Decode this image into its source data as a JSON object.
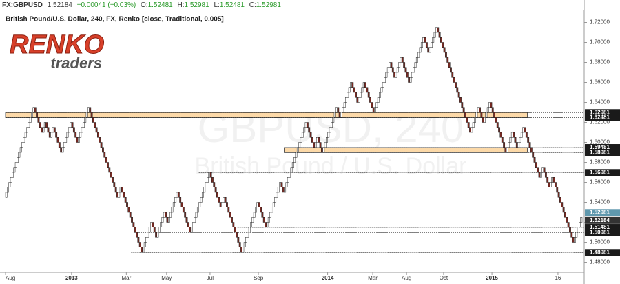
{
  "chart_data": {
    "type": "renko",
    "header": {
      "symbol": "FX:GBPUSD",
      "last": "1.52184",
      "change": "+0.00041 (+0.03%)",
      "open_label": "O:",
      "open": "1.52481",
      "high_label": "H:",
      "high": "1.52981",
      "low_label": "L:",
      "low": "1.52481",
      "close_label": "C:",
      "close": "1.52981"
    },
    "title": "British Pound/U.S. Dollar, 240, FX, Renko [close, Traditional, 0.005]",
    "logo": {
      "word": "RENKO",
      "sub": "traders"
    },
    "watermark": {
      "symbol": "GBPUSD, 240",
      "name": "British Pound / U.S. Dollar"
    },
    "box_size": 0.005,
    "up_color": "#ffffff",
    "down_color": "#7a2a22",
    "swings": [
      1.545,
      1.635,
      1.61,
      1.62,
      1.605,
      1.615,
      1.59,
      1.62,
      1.6,
      1.635,
      1.545,
      1.555,
      1.49,
      1.52,
      1.505,
      1.53,
      1.52,
      1.55,
      1.51,
      1.57,
      1.535,
      1.545,
      1.49,
      1.54,
      1.515,
      1.56,
      1.55,
      1.62,
      1.595,
      1.605,
      1.59,
      1.635,
      1.625,
      1.66,
      1.64,
      1.66,
      1.63,
      1.68,
      1.665,
      1.685,
      1.66,
      1.705,
      1.69,
      1.715,
      1.61,
      1.635,
      1.62,
      1.64,
      1.59,
      1.61,
      1.595,
      1.615,
      1.565,
      1.575,
      1.555,
      1.565,
      1.5,
      1.51,
      1.525
    ],
    "xlim": [
      0,
      358
    ],
    "xticks": [
      {
        "value": 0,
        "label": "Aug"
      },
      {
        "value": 41,
        "label": "2013"
      },
      {
        "value": 75,
        "label": "Mar"
      },
      {
        "value": 100,
        "label": "May"
      },
      {
        "value": 127,
        "label": "Jul"
      },
      {
        "value": 157,
        "label": "Sep"
      },
      {
        "value": 200,
        "label": "2014"
      },
      {
        "value": 228,
        "label": "Mar"
      },
      {
        "value": 249,
        "label": "Aug"
      },
      {
        "value": 272,
        "label": "Oct"
      },
      {
        "value": 302,
        "label": "2015"
      },
      {
        "value": 343,
        "label": "16"
      }
    ],
    "ylim": [
      1.47,
      1.73
    ],
    "yticks": [
      {
        "value": 1.48,
        "label": "1.48000"
      },
      {
        "value": 1.5,
        "label": "1.50000"
      },
      {
        "value": 1.52,
        "label": "1.52000"
      },
      {
        "value": 1.54,
        "label": "1.54000"
      },
      {
        "value": 1.56,
        "label": "1.56000"
      },
      {
        "value": 1.58,
        "label": "1.58000"
      },
      {
        "value": 1.6,
        "label": "1.60000"
      },
      {
        "value": 1.62,
        "label": "1.62000"
      },
      {
        "value": 1.64,
        "label": "1.64000"
      },
      {
        "value": 1.66,
        "label": "1.66000"
      },
      {
        "value": 1.68,
        "label": "1.68000"
      },
      {
        "value": 1.7,
        "label": "1.70000"
      },
      {
        "value": 1.72,
        "label": "1.72000"
      }
    ],
    "zones": [
      {
        "from": 1.62481,
        "to": 1.62981,
        "start": 0,
        "end": 324,
        "color": "#fcd9a8"
      },
      {
        "from": 1.58981,
        "to": 1.59481,
        "start": 173,
        "end": 324,
        "color": "#fcd9a8"
      }
    ],
    "price_lines": [
      {
        "value": 1.62981,
        "label": "1.62981",
        "start": 0
      },
      {
        "value": 1.62481,
        "label": "1.62481",
        "start": 0
      },
      {
        "value": 1.59481,
        "label": "1.59481",
        "start": 173
      },
      {
        "value": 1.58981,
        "label": "1.58981",
        "start": 173
      },
      {
        "value": 1.56981,
        "label": "1.56981",
        "start": 120
      },
      {
        "value": 1.51481,
        "label": "1.51481",
        "start": 144
      },
      {
        "value": 1.50981,
        "label": "1.50981",
        "start": 80
      },
      {
        "value": 1.48981,
        "label": "1.48981",
        "start": 78
      }
    ],
    "price_markers": [
      {
        "value": 1.52981,
        "label": "1.52981",
        "color": "#5f98ad"
      },
      {
        "value": 1.52184,
        "label": "1.52184",
        "color": "#333333"
      }
    ]
  }
}
